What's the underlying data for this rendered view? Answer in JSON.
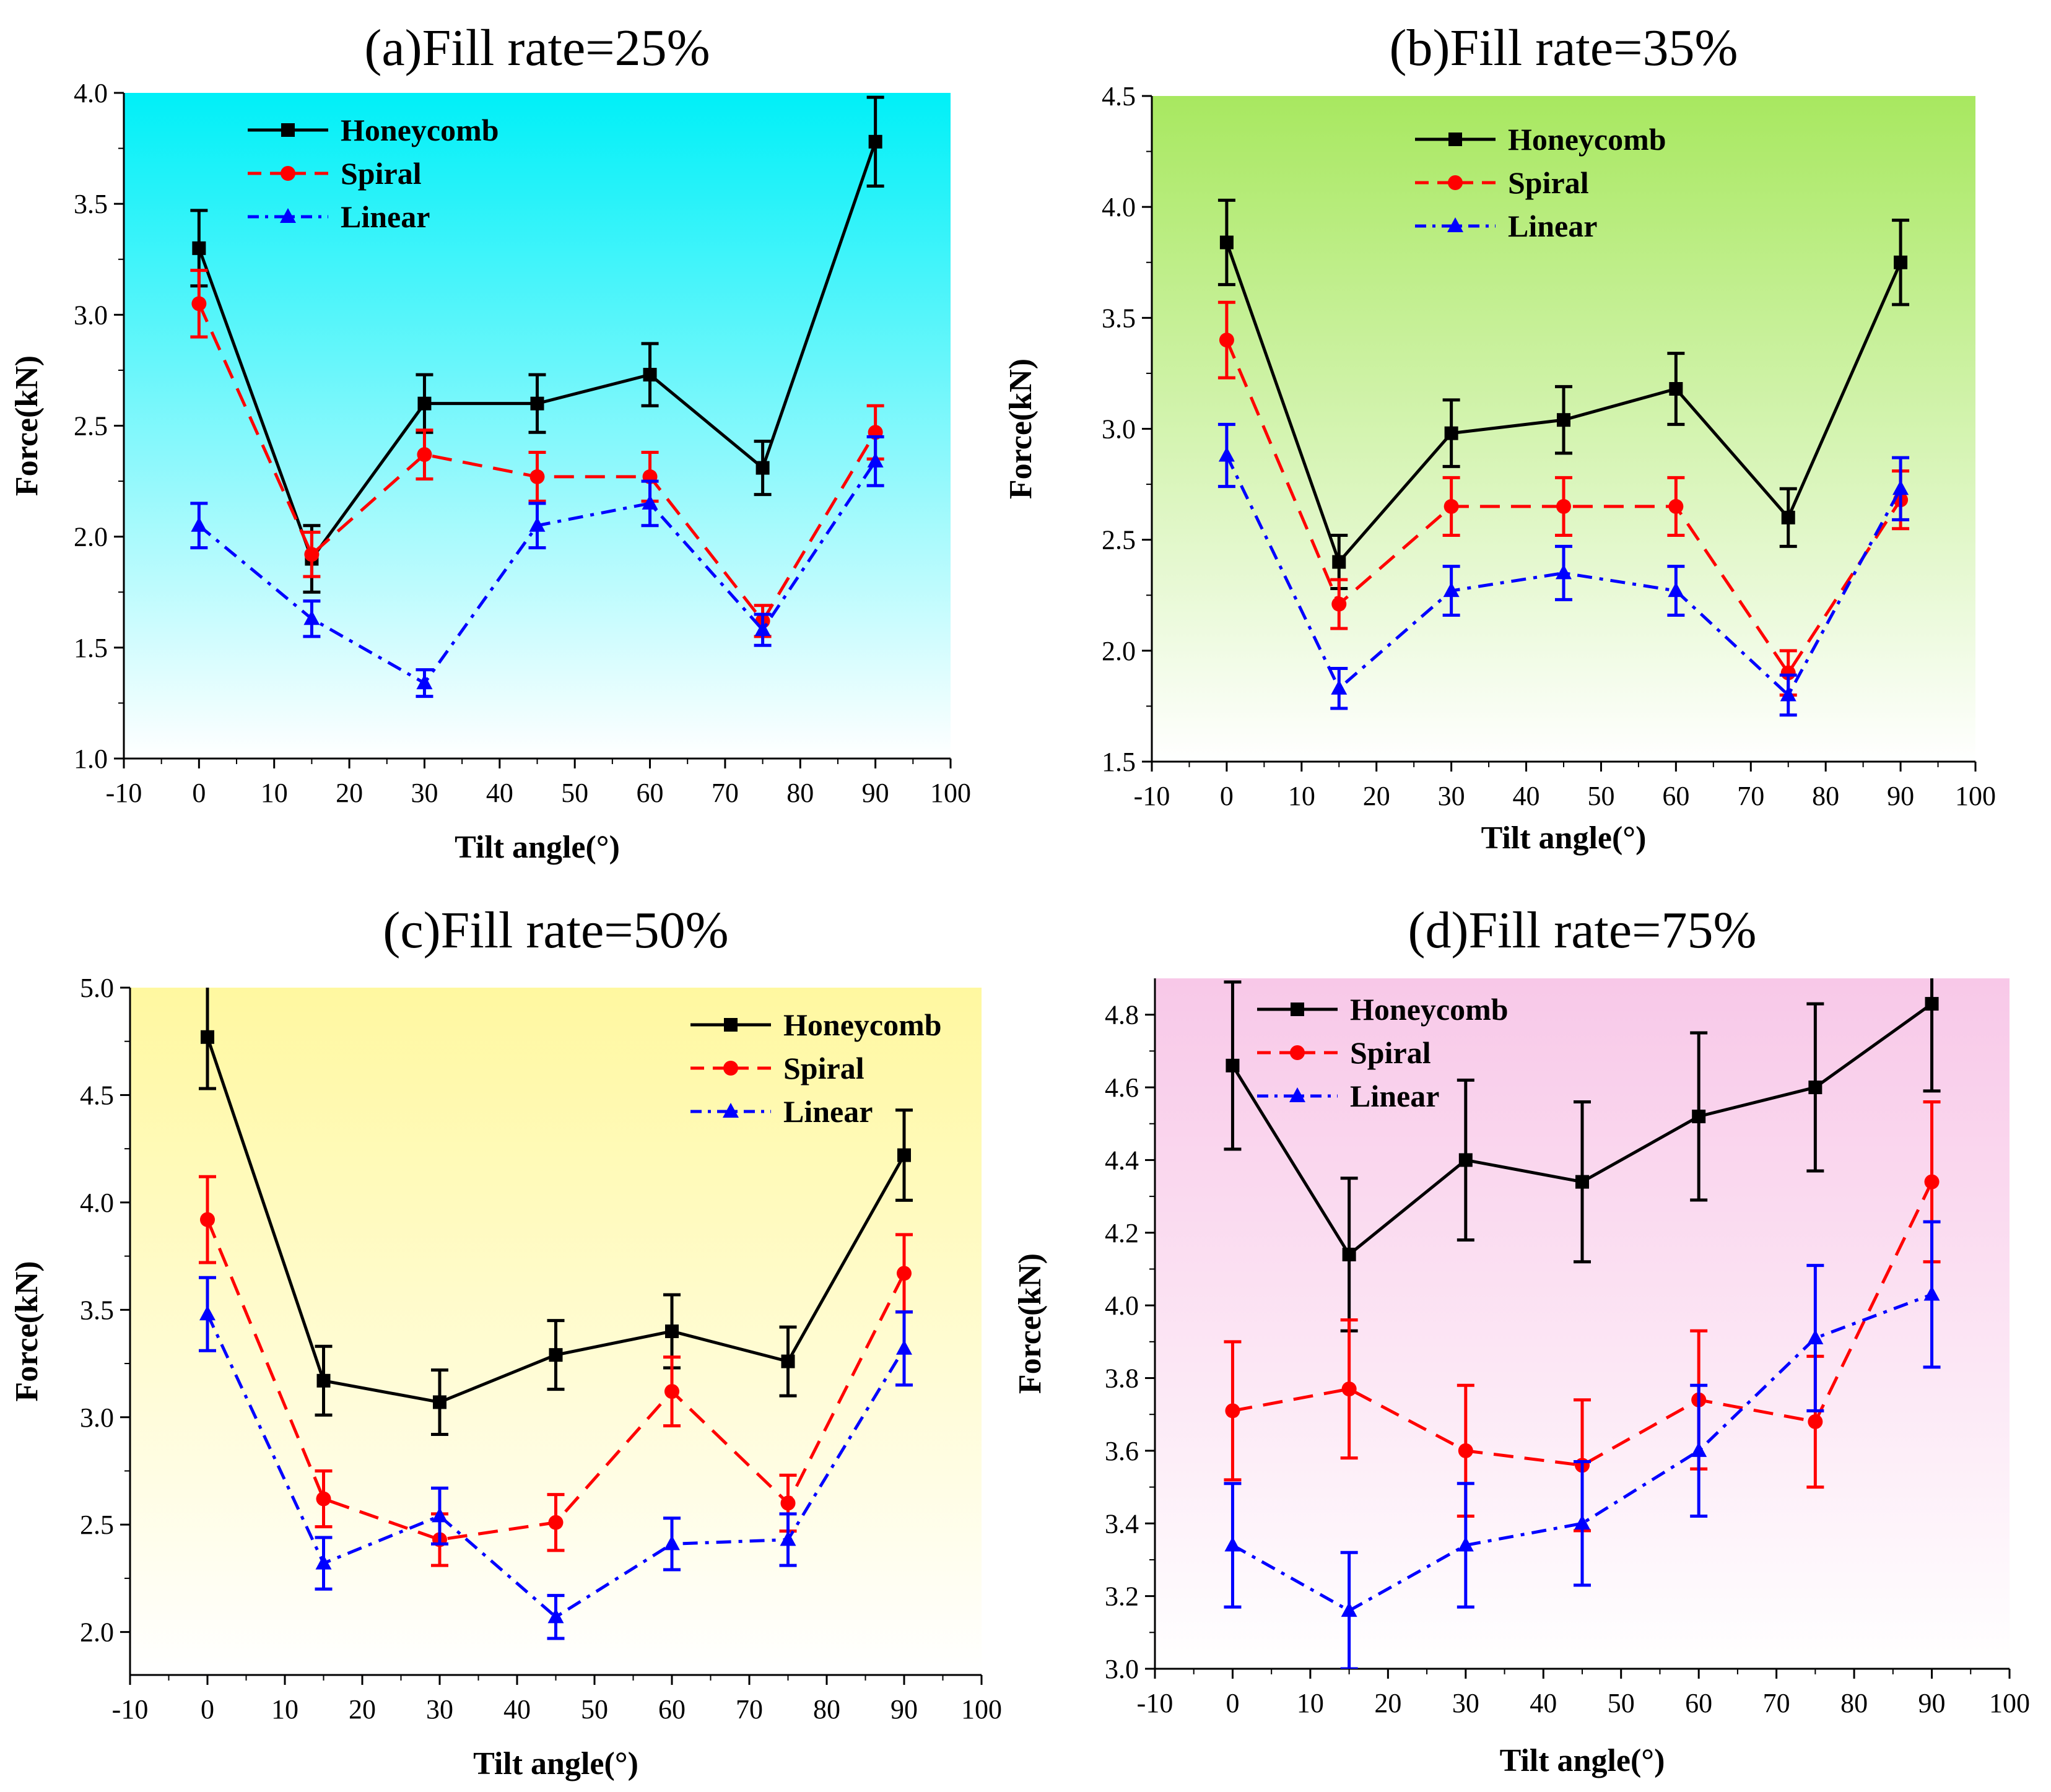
{
  "colors": {
    "honeycomb": "#000000",
    "spiral": "#ff0000",
    "linear": "#0000ff"
  },
  "chart_data": [
    {
      "type": "line",
      "title": "(a)Fill rate=25%",
      "xlabel": "Tilt angle(°)",
      "ylabel": "Force(kN)",
      "xlim": [
        -10,
        100
      ],
      "ylim": [
        1.0,
        4.0
      ],
      "x_ticks": [
        "-10",
        "0",
        "10",
        "20",
        "30",
        "40",
        "50",
        "60",
        "70",
        "80",
        "90",
        "100"
      ],
      "y_ticks": [
        "1.0",
        "1.5",
        "2.0",
        "2.5",
        "3.0",
        "3.5",
        "4.0"
      ],
      "background_gradient": [
        "#00f0f8",
        "#ffffff"
      ],
      "legend_position": "top-left",
      "series": [
        {
          "name": "Honeycomb",
          "marker": "square",
          "dash": "solid",
          "x": [
            0,
            15,
            30,
            45,
            60,
            75,
            90
          ],
          "values": [
            3.3,
            1.9,
            2.6,
            2.6,
            2.73,
            2.31,
            3.78
          ],
          "errors": [
            0.17,
            0.15,
            0.13,
            0.13,
            0.14,
            0.12,
            0.2
          ]
        },
        {
          "name": "Spiral",
          "marker": "circle",
          "dash": "dashed",
          "x": [
            0,
            15,
            30,
            45,
            60,
            75,
            90
          ],
          "values": [
            3.05,
            1.92,
            2.37,
            2.27,
            2.27,
            1.62,
            2.47
          ],
          "errors": [
            0.15,
            0.1,
            0.11,
            0.11,
            0.11,
            0.07,
            0.12
          ]
        },
        {
          "name": "Linear",
          "marker": "triangle",
          "dash": "dashdot",
          "x": [
            0,
            15,
            30,
            45,
            60,
            75,
            90
          ],
          "values": [
            2.05,
            1.63,
            1.34,
            2.05,
            2.15,
            1.58,
            2.34
          ],
          "errors": [
            0.1,
            0.08,
            0.06,
            0.1,
            0.1,
            0.07,
            0.11
          ]
        }
      ]
    },
    {
      "type": "line",
      "title": "(b)Fill rate=35%",
      "xlabel": "Tilt angle(°)",
      "ylabel": "Force(kN)",
      "xlim": [
        -10,
        100
      ],
      "ylim": [
        1.5,
        4.5
      ],
      "x_ticks": [
        "-10",
        "0",
        "10",
        "20",
        "30",
        "40",
        "50",
        "60",
        "70",
        "80",
        "90",
        "100"
      ],
      "y_ticks": [
        "1.5",
        "2.0",
        "2.5",
        "3.0",
        "3.5",
        "4.0",
        "4.5"
      ],
      "background_gradient": [
        "#a8e860",
        "#ffffff"
      ],
      "legend_position": "top-left",
      "series": [
        {
          "name": "Honeycomb",
          "marker": "square",
          "dash": "solid",
          "x": [
            0,
            15,
            30,
            45,
            60,
            75,
            90
          ],
          "values": [
            3.84,
            2.4,
            2.98,
            3.04,
            3.18,
            2.6,
            3.75
          ],
          "errors": [
            0.19,
            0.12,
            0.15,
            0.15,
            0.16,
            0.13,
            0.19
          ]
        },
        {
          "name": "Spiral",
          "marker": "circle",
          "dash": "dashed",
          "x": [
            0,
            15,
            30,
            45,
            60,
            75,
            90
          ],
          "values": [
            3.4,
            2.21,
            2.65,
            2.65,
            2.65,
            1.9,
            2.68
          ],
          "errors": [
            0.17,
            0.11,
            0.13,
            0.13,
            0.13,
            0.1,
            0.13
          ]
        },
        {
          "name": "Linear",
          "marker": "triangle",
          "dash": "dashdot",
          "x": [
            0,
            15,
            30,
            45,
            60,
            75,
            90
          ],
          "values": [
            2.88,
            1.83,
            2.27,
            2.35,
            2.27,
            1.8,
            2.73
          ],
          "errors": [
            0.14,
            0.09,
            0.11,
            0.12,
            0.11,
            0.09,
            0.14
          ]
        }
      ]
    },
    {
      "type": "line",
      "title": "(c)Fill rate=50%",
      "xlabel": "Tilt angle(°)",
      "ylabel": "Force(kN)",
      "xlim": [
        -10,
        100
      ],
      "ylim": [
        1.8,
        5.0
      ],
      "x_ticks": [
        "-10",
        "0",
        "10",
        "20",
        "30",
        "40",
        "50",
        "60",
        "70",
        "80",
        "90",
        "100"
      ],
      "y_ticks": [
        "2.0",
        "2.5",
        "3.0",
        "3.5",
        "4.0",
        "4.5",
        "5.0"
      ],
      "background_gradient": [
        "#fff8a0",
        "#ffffff"
      ],
      "legend_position": "top-right",
      "series": [
        {
          "name": "Honeycomb",
          "marker": "square",
          "dash": "solid",
          "x": [
            0,
            15,
            30,
            45,
            60,
            75,
            90
          ],
          "values": [
            4.77,
            3.17,
            3.07,
            3.29,
            3.4,
            3.26,
            4.22
          ],
          "errors": [
            0.24,
            0.16,
            0.15,
            0.16,
            0.17,
            0.16,
            0.21
          ]
        },
        {
          "name": "Spiral",
          "marker": "circle",
          "dash": "dashed",
          "x": [
            0,
            15,
            30,
            45,
            60,
            75,
            90
          ],
          "values": [
            3.92,
            2.62,
            2.43,
            2.51,
            3.12,
            2.6,
            3.67
          ],
          "errors": [
            0.2,
            0.13,
            0.12,
            0.13,
            0.16,
            0.13,
            0.18
          ]
        },
        {
          "name": "Linear",
          "marker": "triangle",
          "dash": "dashdot",
          "x": [
            0,
            15,
            30,
            45,
            60,
            75,
            90
          ],
          "values": [
            3.48,
            2.32,
            2.54,
            2.07,
            2.41,
            2.43,
            3.32
          ],
          "errors": [
            0.17,
            0.12,
            0.13,
            0.1,
            0.12,
            0.12,
            0.17
          ]
        }
      ]
    },
    {
      "type": "line",
      "title": "(d)Fill rate=75%",
      "xlabel": "Tilt angle(°)",
      "ylabel": "Force(kN)",
      "xlim": [
        -10,
        100
      ],
      "ylim": [
        3.0,
        4.9
      ],
      "x_ticks": [
        "-10",
        "0",
        "10",
        "20",
        "30",
        "40",
        "50",
        "60",
        "70",
        "80",
        "90",
        "100"
      ],
      "y_ticks": [
        "3.0",
        "3.2",
        "3.4",
        "3.6",
        "3.8",
        "4.0",
        "4.2",
        "4.4",
        "4.6",
        "4.8"
      ],
      "background_gradient": [
        "#f8c8e8",
        "#ffffff"
      ],
      "legend_position": "top-left",
      "series": [
        {
          "name": "Honeycomb",
          "marker": "square",
          "dash": "solid",
          "x": [
            0,
            15,
            30,
            45,
            60,
            75,
            90
          ],
          "values": [
            4.66,
            4.14,
            4.4,
            4.34,
            4.52,
            4.6,
            4.83
          ],
          "errors": [
            0.23,
            0.21,
            0.22,
            0.22,
            0.23,
            0.23,
            0.24
          ]
        },
        {
          "name": "Spiral",
          "marker": "circle",
          "dash": "dashed",
          "x": [
            0,
            15,
            30,
            45,
            60,
            75,
            90
          ],
          "values": [
            3.71,
            3.77,
            3.6,
            3.56,
            3.74,
            3.68,
            4.34
          ],
          "errors": [
            0.19,
            0.19,
            0.18,
            0.18,
            0.19,
            0.18,
            0.22
          ]
        },
        {
          "name": "Linear",
          "marker": "triangle",
          "dash": "dashdot",
          "x": [
            0,
            15,
            30,
            45,
            60,
            75,
            90
          ],
          "values": [
            3.34,
            3.16,
            3.34,
            3.4,
            3.6,
            3.91,
            4.03
          ],
          "errors": [
            0.17,
            0.16,
            0.17,
            0.17,
            0.18,
            0.2,
            0.2
          ]
        }
      ]
    }
  ]
}
